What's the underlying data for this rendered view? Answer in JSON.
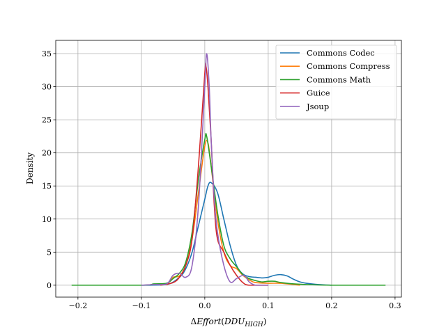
{
  "chart_data": {
    "type": "line",
    "title": "",
    "xlabel": "ΔEffort(DDU_HIGH)",
    "ylabel": "Density",
    "xlim": [
      -0.235,
      0.31
    ],
    "ylim": [
      -1.8,
      37
    ],
    "xticks": [
      -0.2,
      -0.1,
      0.0,
      0.1,
      0.2,
      0.3
    ],
    "xtick_labels": [
      "−0.2",
      "−0.1",
      "0.0",
      "0.1",
      "0.2",
      "0.3"
    ],
    "yticks": [
      0,
      5,
      10,
      15,
      20,
      25,
      30,
      35
    ],
    "ytick_labels": [
      "0",
      "5",
      "10",
      "15",
      "20",
      "25",
      "30",
      "35"
    ],
    "grid": true,
    "legend_position": "top-right",
    "series": [
      {
        "name": "Commons Codec",
        "color": "#1f77b4",
        "points": [
          [
            -0.1,
            0
          ],
          [
            -0.06,
            0.1
          ],
          [
            -0.04,
            1.2
          ],
          [
            -0.03,
            2.5
          ],
          [
            -0.02,
            5
          ],
          [
            -0.01,
            9
          ],
          [
            0.0,
            13
          ],
          [
            0.005,
            15
          ],
          [
            0.01,
            15.5
          ],
          [
            0.02,
            14
          ],
          [
            0.03,
            10
          ],
          [
            0.04,
            6
          ],
          [
            0.05,
            3
          ],
          [
            0.06,
            1.7
          ],
          [
            0.07,
            1.3
          ],
          [
            0.08,
            1.2
          ],
          [
            0.09,
            1.1
          ],
          [
            0.1,
            1.2
          ],
          [
            0.11,
            1.5
          ],
          [
            0.12,
            1.6
          ],
          [
            0.13,
            1.4
          ],
          [
            0.14,
            0.9
          ],
          [
            0.15,
            0.5
          ],
          [
            0.16,
            0.3
          ],
          [
            0.18,
            0.1
          ],
          [
            0.2,
            0
          ]
        ]
      },
      {
        "name": "Commons Compress",
        "color": "#ff7f0e",
        "points": [
          [
            -0.06,
            0
          ],
          [
            -0.05,
            1.2
          ],
          [
            -0.04,
            1.4
          ],
          [
            -0.03,
            3
          ],
          [
            -0.02,
            7
          ],
          [
            -0.01,
            14
          ],
          [
            0.0,
            21
          ],
          [
            0.005,
            21.5
          ],
          [
            0.01,
            18
          ],
          [
            0.02,
            10
          ],
          [
            0.03,
            5
          ],
          [
            0.04,
            3
          ],
          [
            0.05,
            2.5
          ],
          [
            0.06,
            1.5
          ],
          [
            0.07,
            0.8
          ],
          [
            0.08,
            0.4
          ],
          [
            0.1,
            0.3
          ],
          [
            0.12,
            0.3
          ],
          [
            0.14,
            0.1
          ],
          [
            0.15,
            0
          ]
        ]
      },
      {
        "name": "Commons Math",
        "color": "#2ca02c",
        "points": [
          [
            -0.21,
            0
          ],
          [
            -0.1,
            0
          ],
          [
            -0.08,
            0.2
          ],
          [
            -0.06,
            0.3
          ],
          [
            -0.05,
            1.0
          ],
          [
            -0.04,
            1.8
          ],
          [
            -0.03,
            3.5
          ],
          [
            -0.02,
            8
          ],
          [
            -0.01,
            16
          ],
          [
            0.0,
            22
          ],
          [
            0.003,
            22.5
          ],
          [
            0.01,
            18
          ],
          [
            0.02,
            11
          ],
          [
            0.03,
            6
          ],
          [
            0.04,
            4
          ],
          [
            0.05,
            2.8
          ],
          [
            0.06,
            1.6
          ],
          [
            0.07,
            1.0
          ],
          [
            0.08,
            0.7
          ],
          [
            0.09,
            0.5
          ],
          [
            0.1,
            0.6
          ],
          [
            0.11,
            0.6
          ],
          [
            0.12,
            0.4
          ],
          [
            0.14,
            0.2
          ],
          [
            0.16,
            0.1
          ],
          [
            0.2,
            0
          ],
          [
            0.285,
            0
          ]
        ]
      },
      {
        "name": "Guice",
        "color": "#d62728",
        "points": [
          [
            -0.07,
            0
          ],
          [
            -0.05,
            0.4
          ],
          [
            -0.04,
            1.2
          ],
          [
            -0.03,
            3
          ],
          [
            -0.02,
            7
          ],
          [
            -0.01,
            18
          ],
          [
            0.0,
            32
          ],
          [
            0.002,
            33
          ],
          [
            0.005,
            30
          ],
          [
            0.01,
            22
          ],
          [
            0.015,
            12
          ],
          [
            0.02,
            7
          ],
          [
            0.03,
            5
          ],
          [
            0.04,
            3
          ],
          [
            0.05,
            1.5
          ],
          [
            0.06,
            0.4
          ],
          [
            0.07,
            0
          ],
          [
            0.1,
            0
          ]
        ]
      },
      {
        "name": "Jsoup",
        "color": "#9467bd",
        "points": [
          [
            -0.1,
            0
          ],
          [
            -0.08,
            0.1
          ],
          [
            -0.06,
            0.2
          ],
          [
            -0.05,
            1.5
          ],
          [
            -0.04,
            1.8
          ],
          [
            -0.03,
            1.2
          ],
          [
            -0.02,
            3
          ],
          [
            -0.01,
            12
          ],
          [
            0.0,
            30
          ],
          [
            0.003,
            35
          ],
          [
            0.007,
            30
          ],
          [
            0.01,
            22
          ],
          [
            0.015,
            13
          ],
          [
            0.02,
            8
          ],
          [
            0.03,
            3
          ],
          [
            0.04,
            0.5
          ],
          [
            0.05,
            1
          ],
          [
            0.06,
            1.5
          ],
          [
            0.065,
            1.2
          ],
          [
            0.07,
            0.5
          ],
          [
            0.08,
            0
          ],
          [
            0.1,
            0
          ]
        ]
      }
    ]
  }
}
